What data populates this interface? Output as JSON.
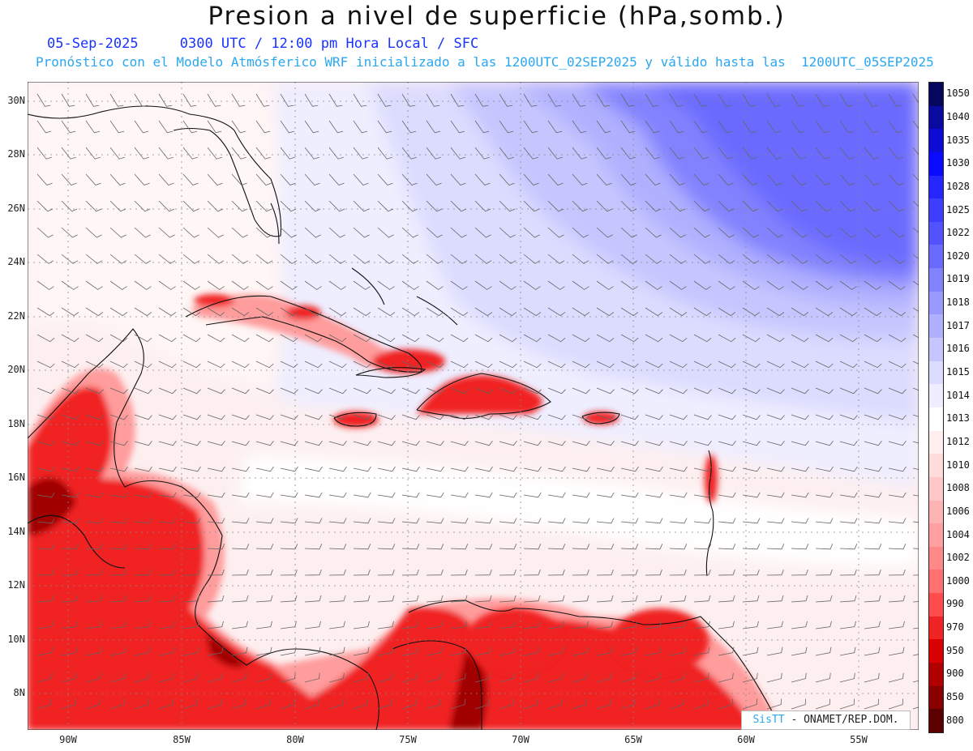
{
  "header": {
    "title": "Presion a nivel de superficie (hPa,somb.)",
    "subtitle_line1": "05-Sep-2025     0300 UTC / 12:00 pm Hora Local / SFC",
    "subtitle_line2": "Pronóstico con el Modelo Atmósferico WRF inicializado a las 1200UTC_02SEP2025 y válido hasta las  1200UTC_05SEP2025"
  },
  "map": {
    "latitude_labels": [
      "30N",
      "28N",
      "26N",
      "24N",
      "22N",
      "20N",
      "18N",
      "16N",
      "14N",
      "12N",
      "10N",
      "8N"
    ],
    "longitude_labels": [
      "90W",
      "85W",
      "80W",
      "75W",
      "70W",
      "65W",
      "60W",
      "55W"
    ],
    "colors": {
      "background_pressure": "#fdeff0",
      "high_pressure": "#6a6cff",
      "low_pressure": "#e00000",
      "coastline": "#111111",
      "wind_barbs": "#555555",
      "gridlines": "#888888"
    },
    "icon": "wind-barb-icon"
  },
  "colorbar": {
    "labels": [
      "1050",
      "1040",
      "1035",
      "1030",
      "1028",
      "1025",
      "1022",
      "1020",
      "1019",
      "1018",
      "1017",
      "1016",
      "1015",
      "1014",
      "1013",
      "1012",
      "1010",
      "1008",
      "1006",
      "1004",
      "1002",
      "1000",
      "990",
      "970",
      "950",
      "900",
      "850",
      "800"
    ],
    "colors": [
      "#06065c",
      "#0a0aa0",
      "#0c0cd4",
      "#0a0aff",
      "#2626ff",
      "#3e3eff",
      "#5252ff",
      "#6a6aff",
      "#8282ff",
      "#9999ff",
      "#b0b0ff",
      "#c6c6ff",
      "#dcdcff",
      "#eeeeff",
      "#ffffff",
      "#ffeeee",
      "#ffdcdc",
      "#ffc8c8",
      "#ffb4b4",
      "#ffa0a0",
      "#ff8888",
      "#ff7070",
      "#ff4c4c",
      "#f02424",
      "#d80000",
      "#b00000",
      "#880000",
      "#5a0000"
    ]
  },
  "credit": {
    "sis": "SisTT",
    "org": " - ONAMET/REP.DOM."
  }
}
